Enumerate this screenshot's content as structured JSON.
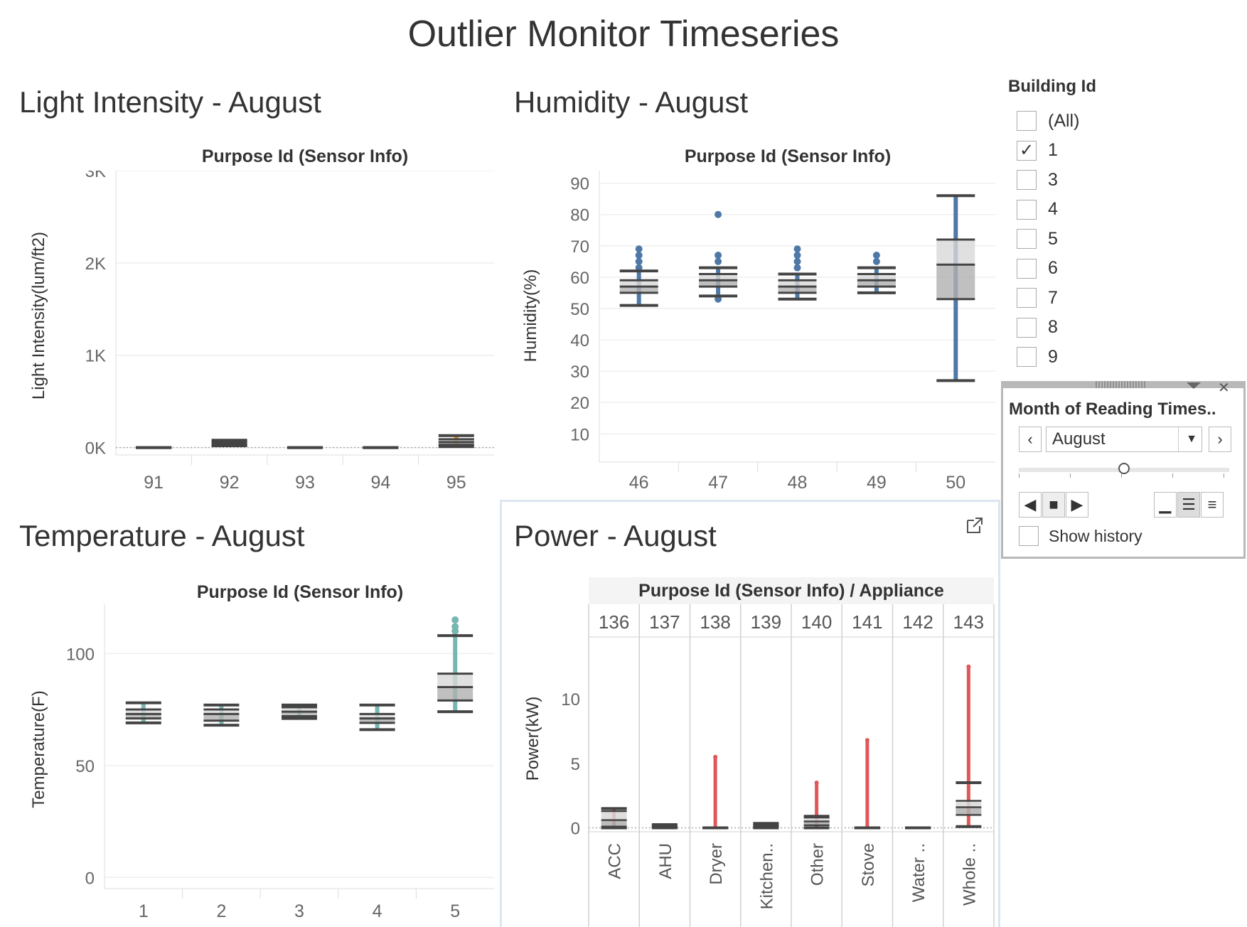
{
  "dashboard_title": "Outlier Monitor Timeseries",
  "light": {
    "title": "Light Intensity - August",
    "header": "Purpose Id (Sensor Info)",
    "ylabel": "Light Intensity(lum/ft2)",
    "yticks": [
      "0K",
      "1K",
      "2K",
      "3K"
    ],
    "categories": [
      "91",
      "92",
      "93",
      "94",
      "95"
    ]
  },
  "humidity": {
    "title": "Humidity - August",
    "header": "Purpose Id (Sensor Info)",
    "ylabel": "Humidity(%)",
    "yticks": [
      "10",
      "20",
      "30",
      "40",
      "50",
      "60",
      "70",
      "80",
      "90"
    ],
    "categories": [
      "46",
      "47",
      "48",
      "49",
      "50"
    ]
  },
  "temperature": {
    "title": "Temperature - August",
    "header": "Purpose Id (Sensor Info)",
    "ylabel": "Temperature(F)",
    "yticks": [
      "0",
      "50",
      "100"
    ],
    "categories": [
      "1",
      "2",
      "3",
      "4",
      "5"
    ]
  },
  "power": {
    "title": "Power - August",
    "header": "Purpose Id (Sensor Info)  /  Appliance",
    "ylabel": "Power(kW)",
    "yticks": [
      "0",
      "5",
      "10"
    ],
    "purpose_ids": [
      "136",
      "137",
      "138",
      "139",
      "140",
      "141",
      "142",
      "143"
    ],
    "appliances": [
      "ACC",
      "AHU",
      "Dryer",
      "Kitchen..",
      "Other",
      "Stove",
      "Water ..",
      "Whole .."
    ]
  },
  "building_filter": {
    "title": "Building Id",
    "items": [
      {
        "label": "(All)",
        "checked": false
      },
      {
        "label": "1",
        "checked": true
      },
      {
        "label": "3",
        "checked": false
      },
      {
        "label": "4",
        "checked": false
      },
      {
        "label": "5",
        "checked": false
      },
      {
        "label": "6",
        "checked": false
      },
      {
        "label": "7",
        "checked": false
      },
      {
        "label": "8",
        "checked": false
      },
      {
        "label": "9",
        "checked": false
      }
    ]
  },
  "page_control": {
    "title": "Month of Reading Times..",
    "value": "August",
    "show_history_label": "Show history",
    "show_history_checked": false
  },
  "colors": {
    "light": "#f28e2b",
    "humidity": "#4e79a7",
    "temperature": "#76b7b2",
    "power": "#e15759"
  },
  "chart_data": [
    {
      "type": "box",
      "title": "Light Intensity - August",
      "ylabel": "Light Intensity(lum/ft2)",
      "ylim": [
        0,
        3000
      ],
      "categories": [
        "91",
        "92",
        "93",
        "94",
        "95"
      ],
      "boxes": [
        {
          "min": 0,
          "q1": 0,
          "median": 0,
          "q3": 0,
          "max": 0,
          "outliers": []
        },
        {
          "min": 20,
          "q1": 30,
          "median": 50,
          "q3": 70,
          "max": 80,
          "outliers": []
        },
        {
          "min": 0,
          "q1": 0,
          "median": 0,
          "q3": 0,
          "max": 0,
          "outliers": []
        },
        {
          "min": 0,
          "q1": 0,
          "median": 0,
          "q3": 0,
          "max": 0,
          "outliers": []
        },
        {
          "min": 10,
          "q1": 30,
          "median": 60,
          "q3": 90,
          "max": 130,
          "outliers": []
        }
      ]
    },
    {
      "type": "box",
      "title": "Humidity - August",
      "ylabel": "Humidity(%)",
      "ylim": [
        0,
        90
      ],
      "categories": [
        "46",
        "47",
        "48",
        "49",
        "50"
      ],
      "boxes": [
        {
          "min": 51,
          "q1": 55,
          "median": 57,
          "q3": 59,
          "max": 62,
          "outliers": [
            63,
            65,
            67,
            69
          ]
        },
        {
          "min": 54,
          "q1": 57,
          "median": 59,
          "q3": 61,
          "max": 63,
          "outliers": [
            53,
            65,
            67,
            80
          ]
        },
        {
          "min": 53,
          "q1": 55,
          "median": 57,
          "q3": 59,
          "max": 61,
          "outliers": [
            63,
            65,
            67,
            69
          ]
        },
        {
          "min": 55,
          "q1": 57,
          "median": 59,
          "q3": 61,
          "max": 63,
          "outliers": [
            65,
            67
          ]
        },
        {
          "min": 27,
          "q1": 53,
          "median": 64,
          "q3": 72,
          "max": 86,
          "outliers": []
        }
      ]
    },
    {
      "type": "box",
      "title": "Temperature - August",
      "ylabel": "Temperature(F)",
      "ylim": [
        0,
        120
      ],
      "categories": [
        "1",
        "2",
        "3",
        "4",
        "5"
      ],
      "boxes": [
        {
          "min": 69,
          "q1": 71,
          "median": 73,
          "q3": 75,
          "max": 78,
          "outliers": []
        },
        {
          "min": 68,
          "q1": 70,
          "median": 73,
          "q3": 75,
          "max": 77,
          "outliers": []
        },
        {
          "min": 71,
          "q1": 72,
          "median": 74,
          "q3": 76,
          "max": 77,
          "outliers": []
        },
        {
          "min": 66,
          "q1": 69,
          "median": 71,
          "q3": 73,
          "max": 77,
          "outliers": []
        },
        {
          "min": 74,
          "q1": 79,
          "median": 85,
          "q3": 91,
          "max": 108,
          "outliers": [
            110,
            112,
            115
          ]
        }
      ]
    },
    {
      "type": "box",
      "title": "Power - August",
      "ylabel": "Power(kW)",
      "ylim": [
        0,
        14
      ],
      "categories": [
        "ACC",
        "AHU",
        "Dryer",
        "Kitchen..",
        "Other",
        "Stove",
        "Water ..",
        "Whole .."
      ],
      "boxes": [
        {
          "min": 0,
          "q1": 0.1,
          "median": 0.6,
          "q3": 1.3,
          "max": 1.5,
          "outliers": []
        },
        {
          "min": 0,
          "q1": 0.05,
          "median": 0.1,
          "q3": 0.2,
          "max": 0.25,
          "outliers": []
        },
        {
          "min": 0,
          "q1": 0,
          "median": 0,
          "q3": 0,
          "max": 0,
          "outliers": [
            5.5
          ]
        },
        {
          "min": 0,
          "q1": 0.1,
          "median": 0.2,
          "q3": 0.3,
          "max": 0.35,
          "outliers": []
        },
        {
          "min": 0,
          "q1": 0.2,
          "median": 0.5,
          "q3": 0.8,
          "max": 0.9,
          "outliers": [
            3.5
          ]
        },
        {
          "min": 0,
          "q1": 0,
          "median": 0,
          "q3": 0,
          "max": 0,
          "outliers": [
            6.8
          ]
        },
        {
          "min": 0,
          "q1": 0,
          "median": 0,
          "q3": 0,
          "max": 0,
          "outliers": []
        },
        {
          "min": 0.1,
          "q1": 1.0,
          "median": 1.6,
          "q3": 2.1,
          "max": 3.5,
          "outliers": [
            12.5
          ]
        }
      ]
    }
  ]
}
